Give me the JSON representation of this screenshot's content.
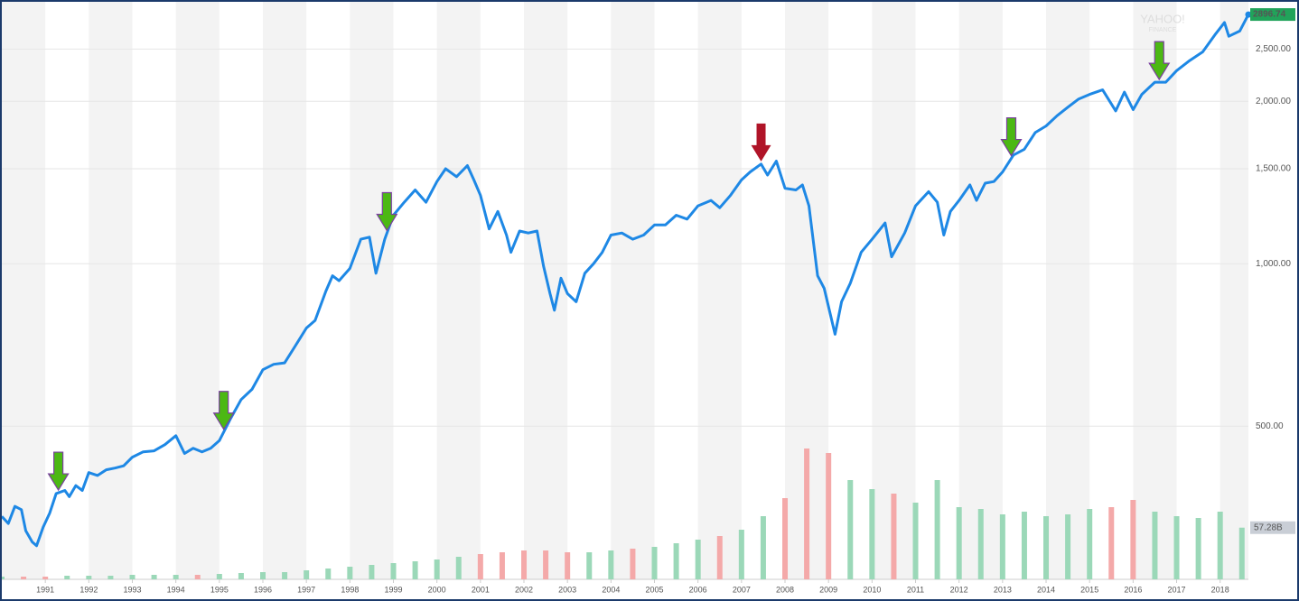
{
  "chart_data": {
    "type": "line",
    "log_y": true,
    "x": [
      1990.0,
      1990.15,
      1990.3,
      1990.45,
      1990.55,
      1990.7,
      1990.8,
      1990.95,
      1991.1,
      1991.25,
      1991.45,
      1991.55,
      1991.7,
      1991.85,
      1992.0,
      1992.2,
      1992.4,
      1992.6,
      1992.8,
      1993.0,
      1993.25,
      1993.5,
      1993.75,
      1994.0,
      1994.2,
      1994.4,
      1994.6,
      1994.8,
      1995.0,
      1995.25,
      1995.5,
      1995.75,
      1996.0,
      1996.25,
      1996.5,
      1996.75,
      1997.0,
      1997.2,
      1997.45,
      1997.6,
      1997.75,
      1998.0,
      1998.25,
      1998.45,
      1998.6,
      1998.8,
      1999.0,
      1999.25,
      1999.5,
      1999.75,
      2000.0,
      2000.2,
      2000.45,
      2000.7,
      2000.85,
      2001.0,
      2001.2,
      2001.4,
      2001.6,
      2001.7,
      2001.9,
      2002.1,
      2002.3,
      2002.45,
      2002.6,
      2002.7,
      2002.85,
      2003.0,
      2003.2,
      2003.4,
      2003.6,
      2003.8,
      2004.0,
      2004.25,
      2004.5,
      2004.75,
      2005.0,
      2005.25,
      2005.5,
      2005.75,
      2006.0,
      2006.3,
      2006.5,
      2006.75,
      2007.0,
      2007.2,
      2007.45,
      2007.6,
      2007.8,
      2008.0,
      2008.25,
      2008.4,
      2008.55,
      2008.75,
      2008.9,
      2009.15,
      2009.3,
      2009.5,
      2009.75,
      2010.0,
      2010.3,
      2010.45,
      2010.75,
      2011.0,
      2011.3,
      2011.5,
      2011.65,
      2011.8,
      2012.0,
      2012.25,
      2012.4,
      2012.6,
      2012.8,
      2013.0,
      2013.25,
      2013.5,
      2013.75,
      2014.0,
      2014.25,
      2014.5,
      2014.75,
      2015.0,
      2015.3,
      2015.6,
      2015.8,
      2016.0,
      2016.2,
      2016.5,
      2016.75,
      2017.0,
      2017.3,
      2017.6,
      2017.9,
      2018.1,
      2018.2,
      2018.45,
      2018.65
    ],
    "series": [
      {
        "color": "#1e88e5",
        "values": [
          340,
          330,
          355,
          350,
          320,
          305,
          300,
          325,
          345,
          375,
          380,
          370,
          388,
          380,
          410,
          405,
          415,
          418,
          422,
          438,
          448,
          450,
          462,
          480,
          445,
          455,
          448,
          455,
          470,
          515,
          560,
          585,
          636,
          651,
          655,
          705,
          760,
          785,
          890,
          950,
          930,
          980,
          1110,
          1120,
          960,
          1110,
          1230,
          1300,
          1370,
          1300,
          1420,
          1500,
          1450,
          1520,
          1430,
          1340,
          1160,
          1250,
          1130,
          1050,
          1150,
          1140,
          1150,
          990,
          880,
          820,
          940,
          880,
          850,
          960,
          1000,
          1050,
          1130,
          1140,
          1110,
          1130,
          1180,
          1180,
          1230,
          1210,
          1280,
          1310,
          1270,
          1340,
          1430,
          1480,
          1530,
          1460,
          1550,
          1380,
          1370,
          1400,
          1280,
          950,
          900,
          740,
          850,
          920,
          1050,
          1110,
          1190,
          1030,
          1140,
          1280,
          1360,
          1300,
          1130,
          1250,
          1310,
          1400,
          1310,
          1410,
          1420,
          1480,
          1590,
          1630,
          1750,
          1800,
          1880,
          1950,
          2020,
          2060,
          2100,
          1920,
          2080,
          1930,
          2060,
          2170,
          2170,
          2280,
          2380,
          2470,
          2670,
          2800,
          2640,
          2700,
          2896.74
        ]
      }
    ],
    "xlim": [
      1990.0,
      2018.65
    ],
    "ylim": [
      260,
      3000
    ],
    "xticks": [
      {
        "value": 1991,
        "label": "1991"
      },
      {
        "value": 1992,
        "label": "1992"
      },
      {
        "value": 1993,
        "label": "1993"
      },
      {
        "value": 1994,
        "label": "1994"
      },
      {
        "value": 1995,
        "label": "1995"
      },
      {
        "value": 1996,
        "label": "1996"
      },
      {
        "value": 1997,
        "label": "1997"
      },
      {
        "value": 1998,
        "label": "1998"
      },
      {
        "value": 1999,
        "label": "1999"
      },
      {
        "value": 2000,
        "label": "2000"
      },
      {
        "value": 2001,
        "label": "2001"
      },
      {
        "value": 2002,
        "label": "2002"
      },
      {
        "value": 2003,
        "label": "2003"
      },
      {
        "value": 2004,
        "label": "2004"
      },
      {
        "value": 2005,
        "label": "2005"
      },
      {
        "value": 2006,
        "label": "2006"
      },
      {
        "value": 2007,
        "label": "2007"
      },
      {
        "value": 2008,
        "label": "2008"
      },
      {
        "value": 2009,
        "label": "2009"
      },
      {
        "value": 2010,
        "label": "2010"
      },
      {
        "value": 2011,
        "label": "2011"
      },
      {
        "value": 2012,
        "label": "2012"
      },
      {
        "value": 2013,
        "label": "2013"
      },
      {
        "value": 2014,
        "label": "2014"
      },
      {
        "value": 2015,
        "label": "2015"
      },
      {
        "value": 2016,
        "label": "2016"
      },
      {
        "value": 2017,
        "label": "2017"
      },
      {
        "value": 2018,
        "label": "2018"
      }
    ],
    "yticks": [
      {
        "value": 500,
        "label": "500.00"
      },
      {
        "value": 1000,
        "label": "1,000.00"
      },
      {
        "value": 1500,
        "label": "1,500.00"
      },
      {
        "value": 2000,
        "label": "2,000.00"
      },
      {
        "value": 2500,
        "label": "2,500.00"
      }
    ],
    "grid": true,
    "last_value_color": "#21a35a",
    "volume": {
      "x": [
        1990.0,
        1990.5,
        1991.0,
        1991.5,
        1992.0,
        1992.5,
        1993.0,
        1993.5,
        1994.0,
        1994.5,
        1995.0,
        1995.5,
        1996.0,
        1996.5,
        1997.0,
        1997.5,
        1998.0,
        1998.5,
        1999.0,
        1999.5,
        2000.0,
        2000.5,
        2001.0,
        2001.5,
        2002.0,
        2002.5,
        2003.0,
        2003.5,
        2004.0,
        2004.5,
        2005.0,
        2005.5,
        2006.0,
        2006.5,
        2007.0,
        2007.5,
        2008.0,
        2008.5,
        2009.0,
        2009.5,
        2010.0,
        2010.5,
        2011.0,
        2011.5,
        2012.0,
        2012.5,
        2013.0,
        2013.5,
        2014.0,
        2014.5,
        2015.0,
        2015.5,
        2016.0,
        2016.5,
        2017.0,
        2017.5,
        2018.0,
        2018.5
      ],
      "values": [
        3,
        3,
        3,
        4,
        4,
        4,
        5,
        5,
        5,
        5,
        6,
        7,
        8,
        8,
        10,
        12,
        14,
        16,
        18,
        20,
        22,
        25,
        28,
        30,
        32,
        32,
        30,
        30,
        32,
        34,
        36,
        40,
        44,
        48,
        55,
        70,
        90,
        145,
        140,
        110,
        100,
        95,
        85,
        110,
        80,
        78,
        72,
        75,
        70,
        72,
        78,
        80,
        88,
        75,
        70,
        68,
        75,
        57.28
      ],
      "value_labels": {
        "57": "57.28B"
      },
      "y2lim": [
        0,
        160
      ],
      "up_color": "#9bd8b8",
      "down_color": "#f4a9a9"
    },
    "annotations": [
      {
        "x": 1991.3,
        "color": "#4cb814"
      },
      {
        "x": 1995.1,
        "color": "#4cb814"
      },
      {
        "x": 1998.85,
        "color": "#4cb814"
      },
      {
        "x": 2007.45,
        "color": "#b01428"
      },
      {
        "x": 2013.2,
        "color": "#4cb814"
      },
      {
        "x": 2016.6,
        "color": "#4cb814"
      }
    ],
    "watermark": [
      "YAHOO!",
      "FINANCE"
    ]
  }
}
